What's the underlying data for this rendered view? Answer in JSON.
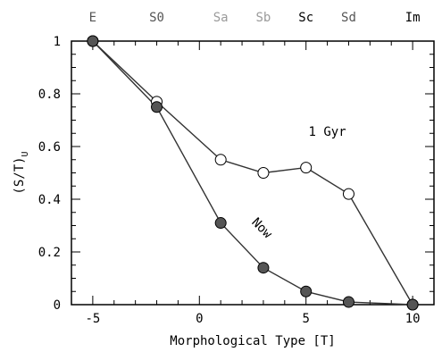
{
  "chart_data": {
    "type": "line",
    "xlabel": "Morphological Type [T]",
    "ylabel": "(S/T)",
    "ylabel_subscript": "U",
    "xlim": [
      -6,
      11
    ],
    "ylim": [
      0,
      1
    ],
    "xticks": [
      -5,
      0,
      5,
      10
    ],
    "yticks": [
      0,
      0.2,
      0.4,
      0.6,
      0.8,
      1
    ],
    "ytick_labels": [
      "0",
      "0.2",
      "0.4",
      "0.6",
      "0.8",
      "1"
    ],
    "top_axis": [
      {
        "label": "E",
        "x": -5,
        "color": "#555555"
      },
      {
        "label": "S0",
        "x": -2,
        "color": "#555555"
      },
      {
        "label": "Sa",
        "x": 1,
        "color": "#9a9a9a"
      },
      {
        "label": "Sb",
        "x": 3,
        "color": "#9a9a9a"
      },
      {
        "label": "Sc",
        "x": 5,
        "color": "#000000"
      },
      {
        "label": "Sd",
        "x": 7,
        "color": "#555555"
      },
      {
        "label": "Im",
        "x": 10,
        "color": "#000000"
      }
    ],
    "series": [
      {
        "name": "1 Gyr",
        "marker": "open-circle",
        "x": [
          -5,
          -2,
          1,
          3,
          5,
          7,
          10
        ],
        "y": [
          1.0,
          0.77,
          0.55,
          0.5,
          0.52,
          0.42,
          0.0
        ]
      },
      {
        "name": "Now",
        "marker": "filled-circle",
        "x": [
          -5,
          -2,
          1,
          3,
          5,
          7,
          10
        ],
        "y": [
          1.0,
          0.75,
          0.31,
          0.14,
          0.05,
          0.01,
          0.0
        ]
      }
    ],
    "annotations": [
      {
        "text": "1 Gyr",
        "x": 6.0,
        "y": 0.64,
        "rotation": 0
      },
      {
        "text": "Now",
        "x": 2.8,
        "y": 0.28,
        "rotation": 45
      }
    ],
    "grid": false,
    "colors": {
      "line": "#333333",
      "filled_marker": "#555555"
    }
  }
}
